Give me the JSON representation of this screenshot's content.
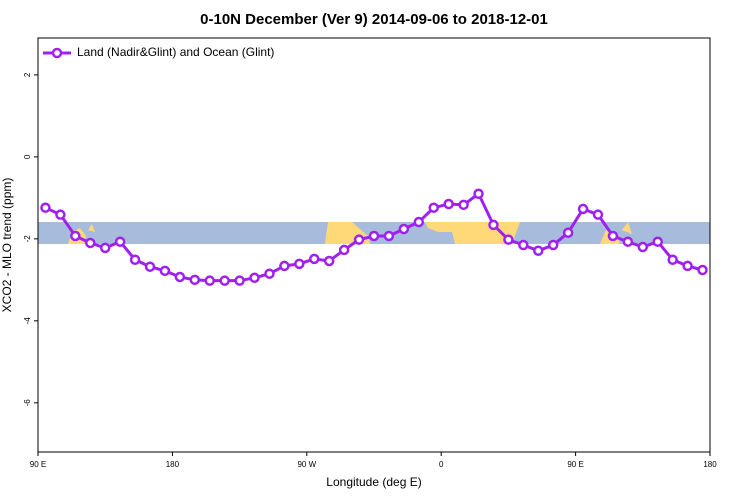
{
  "chart_data": {
    "type": "line",
    "title": "0-10N December (Ver 9)   2014-09-06 to 2018-12-01",
    "xlabel": "Longitude (deg E)",
    "ylabel": "XCO2 - MLO trend (ppm)",
    "legend": "top-left",
    "xlim": [
      90,
      540
    ],
    "xticks": [
      {
        "value": 90,
        "label": "90 E"
      },
      180,
      {
        "value": 270,
        "label": "90 W"
      },
      {
        "value": 360,
        "label": "0"
      },
      {
        "value": 450,
        "label": "90 E"
      },
      {
        "value": 540,
        "label": "180"
      }
    ],
    "ylim": [
      -7.2,
      2.9
    ],
    "yticks": [
      2,
      0,
      -2,
      -4,
      -6
    ],
    "x": [
      95,
      105,
      115,
      125,
      135,
      145,
      155,
      165,
      175,
      185,
      195,
      205,
      215,
      225,
      235,
      245,
      255,
      265,
      275,
      285,
      295,
      305,
      315,
      325,
      335,
      345,
      355,
      365,
      375,
      385,
      395,
      405,
      415,
      425,
      435,
      445,
      455,
      465,
      475,
      485,
      495,
      505,
      515,
      525,
      535
    ],
    "series": [
      {
        "name": "Land (Nadir&Glint) and Ocean (Glint)",
        "color": "#a020f0",
        "values": [
          -1.24,
          -1.41,
          -1.93,
          -2.1,
          -2.22,
          -2.07,
          -2.51,
          -2.68,
          -2.78,
          -2.93,
          -3.0,
          -3.02,
          -3.02,
          -3.02,
          -2.95,
          -2.85,
          -2.66,
          -2.61,
          -2.49,
          -2.54,
          -2.27,
          -2.02,
          -1.93,
          -1.93,
          -1.76,
          -1.59,
          -1.24,
          -1.15,
          -1.17,
          -0.9,
          -1.66,
          -2.02,
          -2.15,
          -2.29,
          -2.15,
          -1.85,
          -1.27,
          -1.41,
          -1.93,
          -2.07,
          -2.2,
          -2.07,
          -2.51,
          -2.66,
          -2.76
        ]
      }
    ]
  }
}
